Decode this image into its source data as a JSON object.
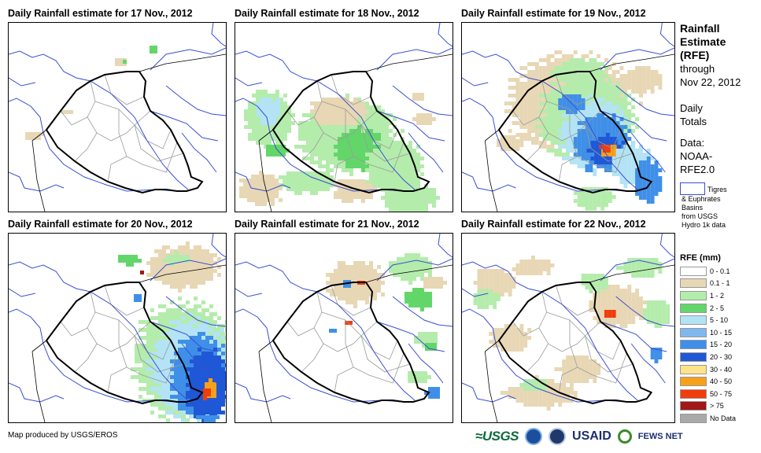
{
  "panels": [
    {
      "title": "Daily Rainfall estimate for 17 Nov., 2012"
    },
    {
      "title": "Daily Rainfall estimate for 18 Nov., 2012"
    },
    {
      "title": "Daily Rainfall estimate for 19 Nov., 2012"
    },
    {
      "title": "Daily Rainfall estimate for 20 Nov., 2012"
    },
    {
      "title": "Daily Rainfall estimate for 21 Nov., 2012"
    },
    {
      "title": "Daily Rainfall estimate for 22 Nov., 2012"
    }
  ],
  "sidebar": {
    "title_lines": [
      "Rainfall",
      "Estimate",
      "(RFE)"
    ],
    "through": "through",
    "through_date": "Nov 22, 2012",
    "daily": "Daily",
    "totals": "Totals",
    "data_label": "Data:",
    "data_src1": "NOAA-",
    "data_src2": "RFE2.0",
    "basin_lines": [
      "Tigres",
      "& Euphrates",
      "Basins",
      "from USGS",
      "Hydro 1k data"
    ],
    "basin_color": "#3a4fd0"
  },
  "legend": {
    "title": "RFE (mm)",
    "classes": [
      {
        "label": "0 - 0.1",
        "color": "#ffffff"
      },
      {
        "label": "0.1 - 1",
        "color": "#e8d7b4"
      },
      {
        "label": "1 - 2",
        "color": "#b4ecac"
      },
      {
        "label": "2 - 5",
        "color": "#63d66a"
      },
      {
        "label": "5 - 10",
        "color": "#b3e3f5"
      },
      {
        "label": "10 - 15",
        "color": "#7fb8ef"
      },
      {
        "label": "15 - 20",
        "color": "#3f8fe8"
      },
      {
        "label": "20 - 30",
        "color": "#1f58d6"
      },
      {
        "label": "30 - 40",
        "color": "#fde48a"
      },
      {
        "label": "40 - 50",
        "color": "#f7a11a"
      },
      {
        "label": "50 - 75",
        "color": "#f03d0c"
      },
      {
        "label": "> 75",
        "color": "#a01818"
      },
      {
        "label": "No Data",
        "color": "#a9a9a9"
      }
    ]
  },
  "footer": {
    "credit": "Map produced by USGS/EROS"
  },
  "logos": {
    "usgs": "≈USGS",
    "usaid": "USAID",
    "fews": "FEWS NET"
  },
  "colors": {
    "border": "#000000",
    "admin": "#9a9a9a",
    "river": "#3a4fd0"
  }
}
